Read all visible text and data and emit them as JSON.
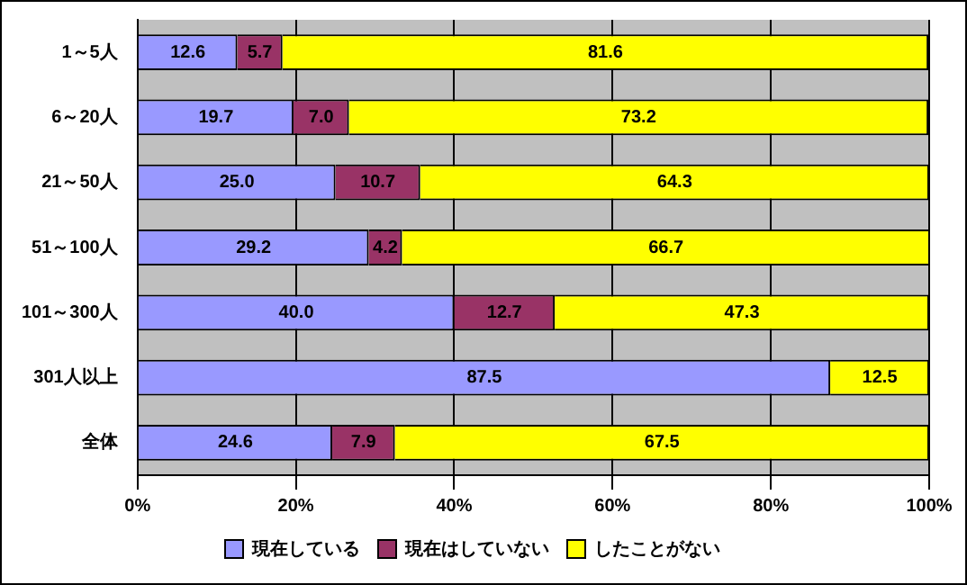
{
  "chart_data": {
    "type": "bar",
    "orientation": "horizontal",
    "stacked": true,
    "categories": [
      "1～5人",
      "6～20人",
      "21～50人",
      "51～100人",
      "101～300人",
      "301人以上",
      "全体"
    ],
    "series": [
      {
        "name": "現在している",
        "color": "#9999ff",
        "values": [
          12.6,
          19.7,
          25.0,
          29.2,
          40.0,
          87.5,
          24.6
        ],
        "value_labels": [
          "12.6",
          "19.7",
          "25.0",
          "29.2",
          "40.0",
          "87.5",
          "24.6"
        ]
      },
      {
        "name": "現在はしていない",
        "color": "#993366",
        "values": [
          5.7,
          7.0,
          10.7,
          4.2,
          12.7,
          0,
          7.9
        ],
        "value_labels": [
          "5.7",
          "7.0",
          "10.7",
          "4.2",
          "12.7",
          null,
          "7.9"
        ]
      },
      {
        "name": "したことがない",
        "color": "#ffff00",
        "values": [
          81.6,
          73.2,
          64.3,
          66.7,
          47.3,
          12.5,
          67.5
        ],
        "value_labels": [
          "81.6",
          "73.2",
          "64.3",
          "66.7",
          "47.3",
          "12.5",
          "67.5"
        ]
      }
    ],
    "xlim": [
      0,
      100
    ],
    "xticks": [
      {
        "value": 0,
        "label": "0%"
      },
      {
        "value": 20,
        "label": "20%"
      },
      {
        "value": 40,
        "label": "40%"
      },
      {
        "value": 60,
        "label": "60%"
      },
      {
        "value": 80,
        "label": "80%"
      },
      {
        "value": 100,
        "label": "100%"
      }
    ],
    "grid": "x",
    "legend": "bottom"
  }
}
